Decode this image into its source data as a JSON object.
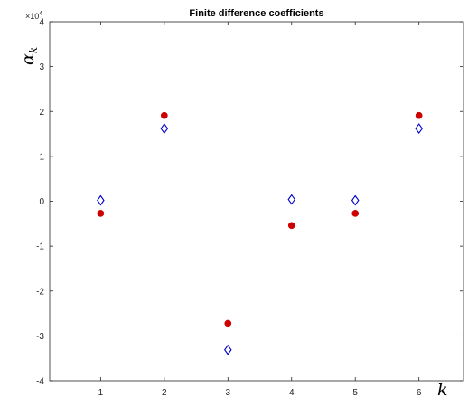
{
  "chart_data": {
    "type": "scatter",
    "title": "Finite difference coefficients",
    "xlabel": "k",
    "ylabel_main": "α",
    "ylabel_sub": "k",
    "y_exponent_label": "×10",
    "y_exponent": "4",
    "xlim": [
      0.2,
      6.7
    ],
    "ylim": [
      -4,
      4
    ],
    "xticks": [
      1,
      2,
      3,
      4,
      5,
      6
    ],
    "yticks": [
      -4,
      -3,
      -2,
      -1,
      0,
      1,
      2,
      3,
      4
    ],
    "grid": false,
    "series": [
      {
        "marker": "filled-circle",
        "color": "#cc0000",
        "x": [
          1,
          2,
          3,
          4,
          5,
          6
        ],
        "y": [
          -0.27,
          1.91,
          -2.72,
          -0.54,
          -0.27,
          1.91
        ]
      },
      {
        "marker": "open-diamond",
        "color": "#0000cc",
        "x": [
          1,
          2,
          3,
          4,
          5,
          6
        ],
        "y": [
          0.02,
          1.62,
          -3.31,
          0.04,
          0.02,
          1.62
        ]
      }
    ]
  }
}
